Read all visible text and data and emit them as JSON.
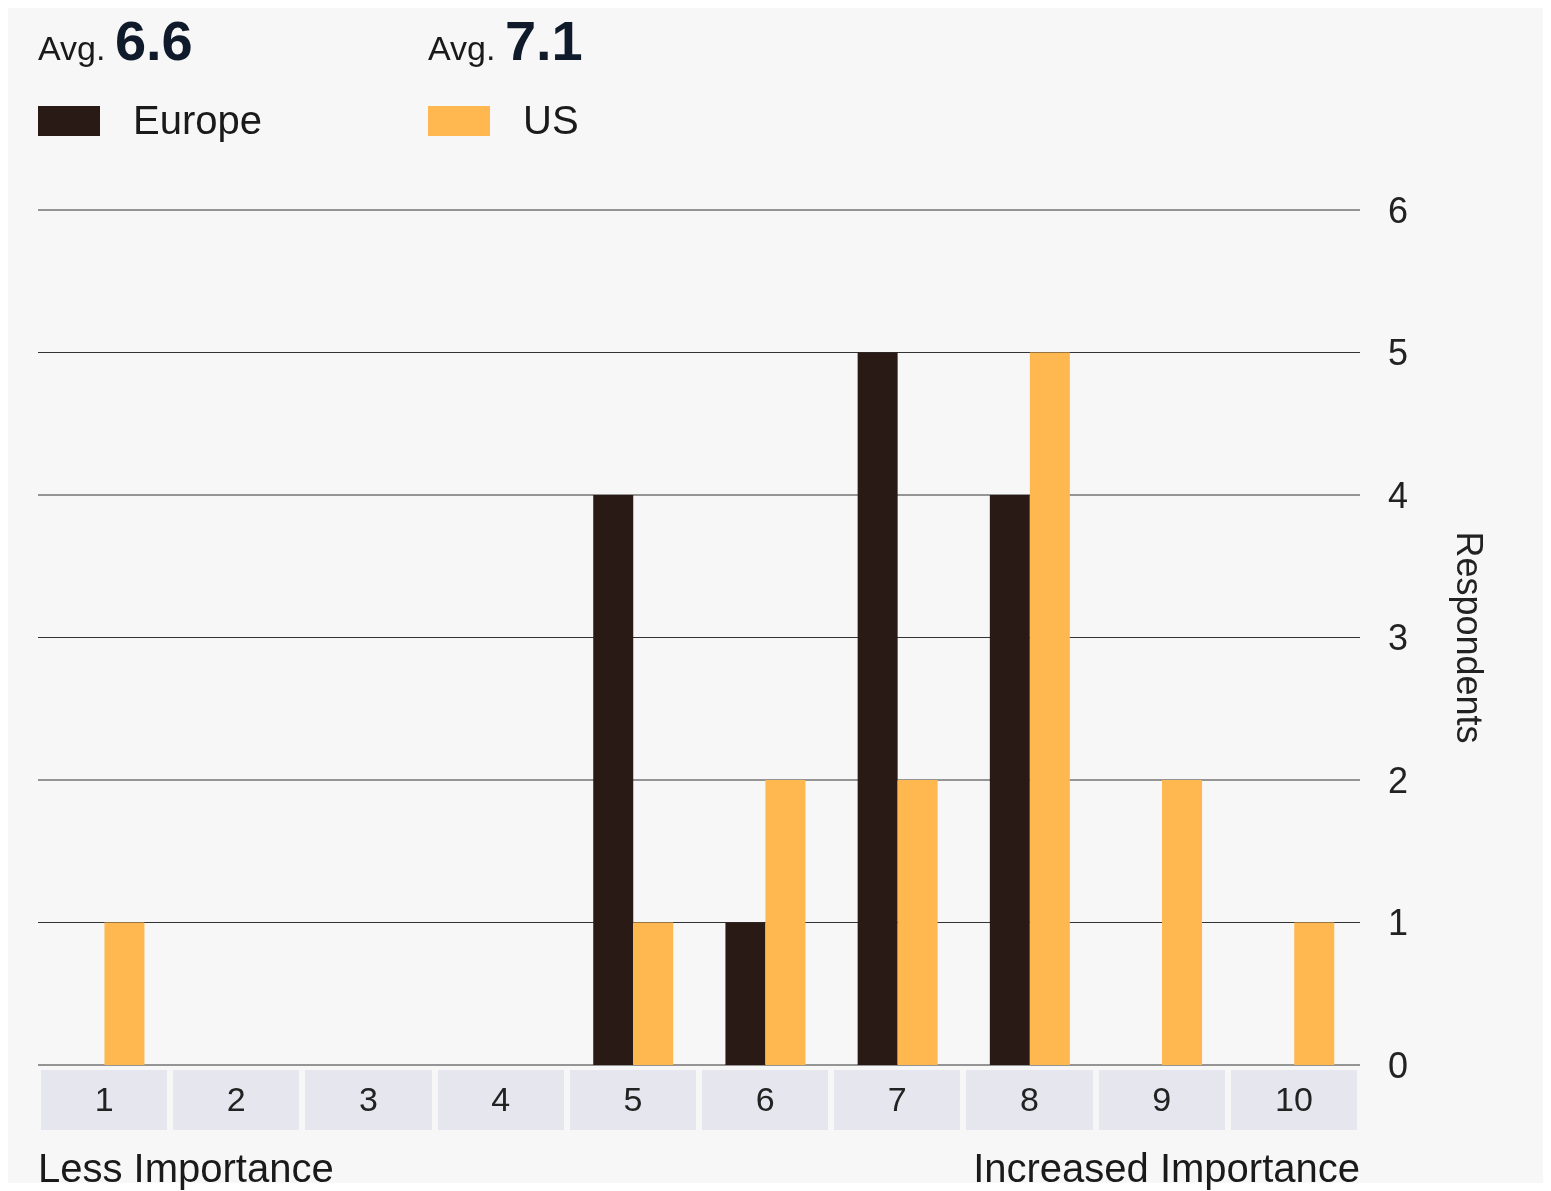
{
  "chart_data": {
    "type": "bar",
    "ylabel": "Respondents",
    "categories": [
      "1",
      "2",
      "3",
      "4",
      "5",
      "6",
      "7",
      "8",
      "9",
      "10"
    ],
    "series": [
      {
        "name": "Europe",
        "color": "#2a1a16",
        "values": [
          0,
          0,
          0,
          0,
          4,
          1,
          5,
          4,
          0,
          0
        ]
      },
      {
        "name": "US",
        "color": "#ffb84f",
        "values": [
          1,
          0,
          0,
          0,
          1,
          2,
          2,
          5,
          2,
          1
        ]
      }
    ],
    "ylim": [
      0,
      6
    ],
    "yticks": [
      0,
      1,
      2,
      3,
      4,
      5,
      6
    ],
    "grid": "y",
    "legend": "top left",
    "annotations": [
      "Avg. 6.6",
      "Avg. 7.1",
      "Less Importance",
      "Increased Importance"
    ]
  }
}
